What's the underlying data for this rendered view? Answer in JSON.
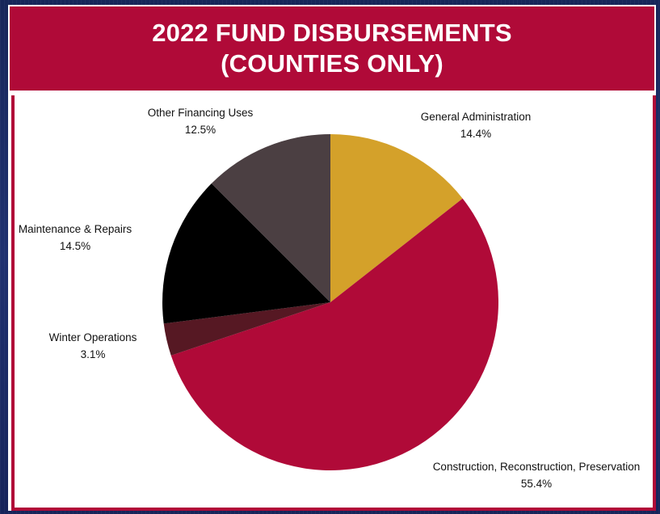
{
  "header": {
    "title_line1": "2022 FUND DISBURSEMENTS",
    "title_line2": "(COUNTIES ONLY)"
  },
  "colors": {
    "general_administration": "#d4a12a",
    "construction": "#b00a38",
    "winter_operations": "#561823",
    "maintenance": "#000000",
    "other_financing": "#4b3f42",
    "title_bar": "#b00a38"
  },
  "chart_data": {
    "type": "pie",
    "title": "2022 FUND DISBURSEMENTS (COUNTIES ONLY)",
    "slices": [
      {
        "label": "General Administration",
        "value": 14.4,
        "display": "14.4%",
        "color": "#d4a12a"
      },
      {
        "label": "Construction, Reconstruction, Preservation",
        "value": 55.4,
        "display": "55.4%",
        "color": "#b00a38"
      },
      {
        "label": "Winter Operations",
        "value": 3.1,
        "display": "3.1%",
        "color": "#561823"
      },
      {
        "label": "Maintenance & Repairs",
        "value": 14.5,
        "display": "14.5%",
        "color": "#000000"
      },
      {
        "label": "Other Financing Uses",
        "value": 12.5,
        "display": "12.5%",
        "color": "#4b3f42"
      }
    ],
    "start_angle": "12 o'clock",
    "direction": "clockwise",
    "legend": "none"
  }
}
